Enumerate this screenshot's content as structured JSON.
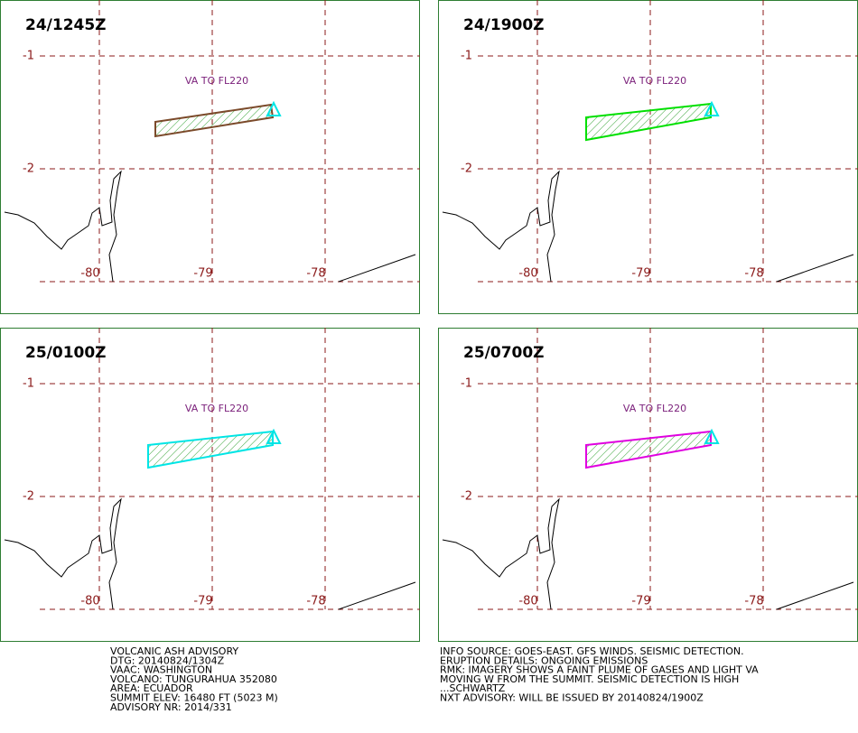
{
  "panels": [
    {
      "time": "24/1245Z",
      "label": "VA TO FL220",
      "color": "#7b4a2a"
    },
    {
      "time": "24/1900Z",
      "label": "VA TO FL220",
      "color": "#00e000"
    },
    {
      "time": "25/0100Z",
      "label": "VA TO FL220",
      "color": "#00e5e5"
    },
    {
      "time": "25/0700Z",
      "label": "VA TO FL220",
      "color": "#e000e0"
    }
  ],
  "grid_labels": {
    "lat": [
      "-1",
      "-2"
    ],
    "lon": [
      "-80",
      "-79",
      "-78"
    ]
  },
  "advisory_left": [
    "VOLCANIC ASH ADVISORY",
    "DTG: 20140824/1304Z",
    "VAAC: WASHINGTON",
    "VOLCANO: TUNGURAHUA 352080",
    "AREA: ECUADOR",
    "SUMMIT ELEV: 16480 FT (5023 M)",
    "ADVISORY NR: 2014/331"
  ],
  "advisory_right": [
    "INFO SOURCE: GOES-EAST. GFS WINDS. SEISMIC DETECTION.",
    "ERUPTION DETAILS: ONGOING EMISSIONS",
    "RMK: IMAGERY SHOWS A FAINT PLUME OF GASES AND LIGHT VA",
    "MOVING W FROM THE SUMMIT. SEISMIC DETECTION IS HIGH",
    "...SCHWARTZ",
    "NXT ADVISORY: WILL BE ISSUED BY 20140824/1900Z"
  ]
}
